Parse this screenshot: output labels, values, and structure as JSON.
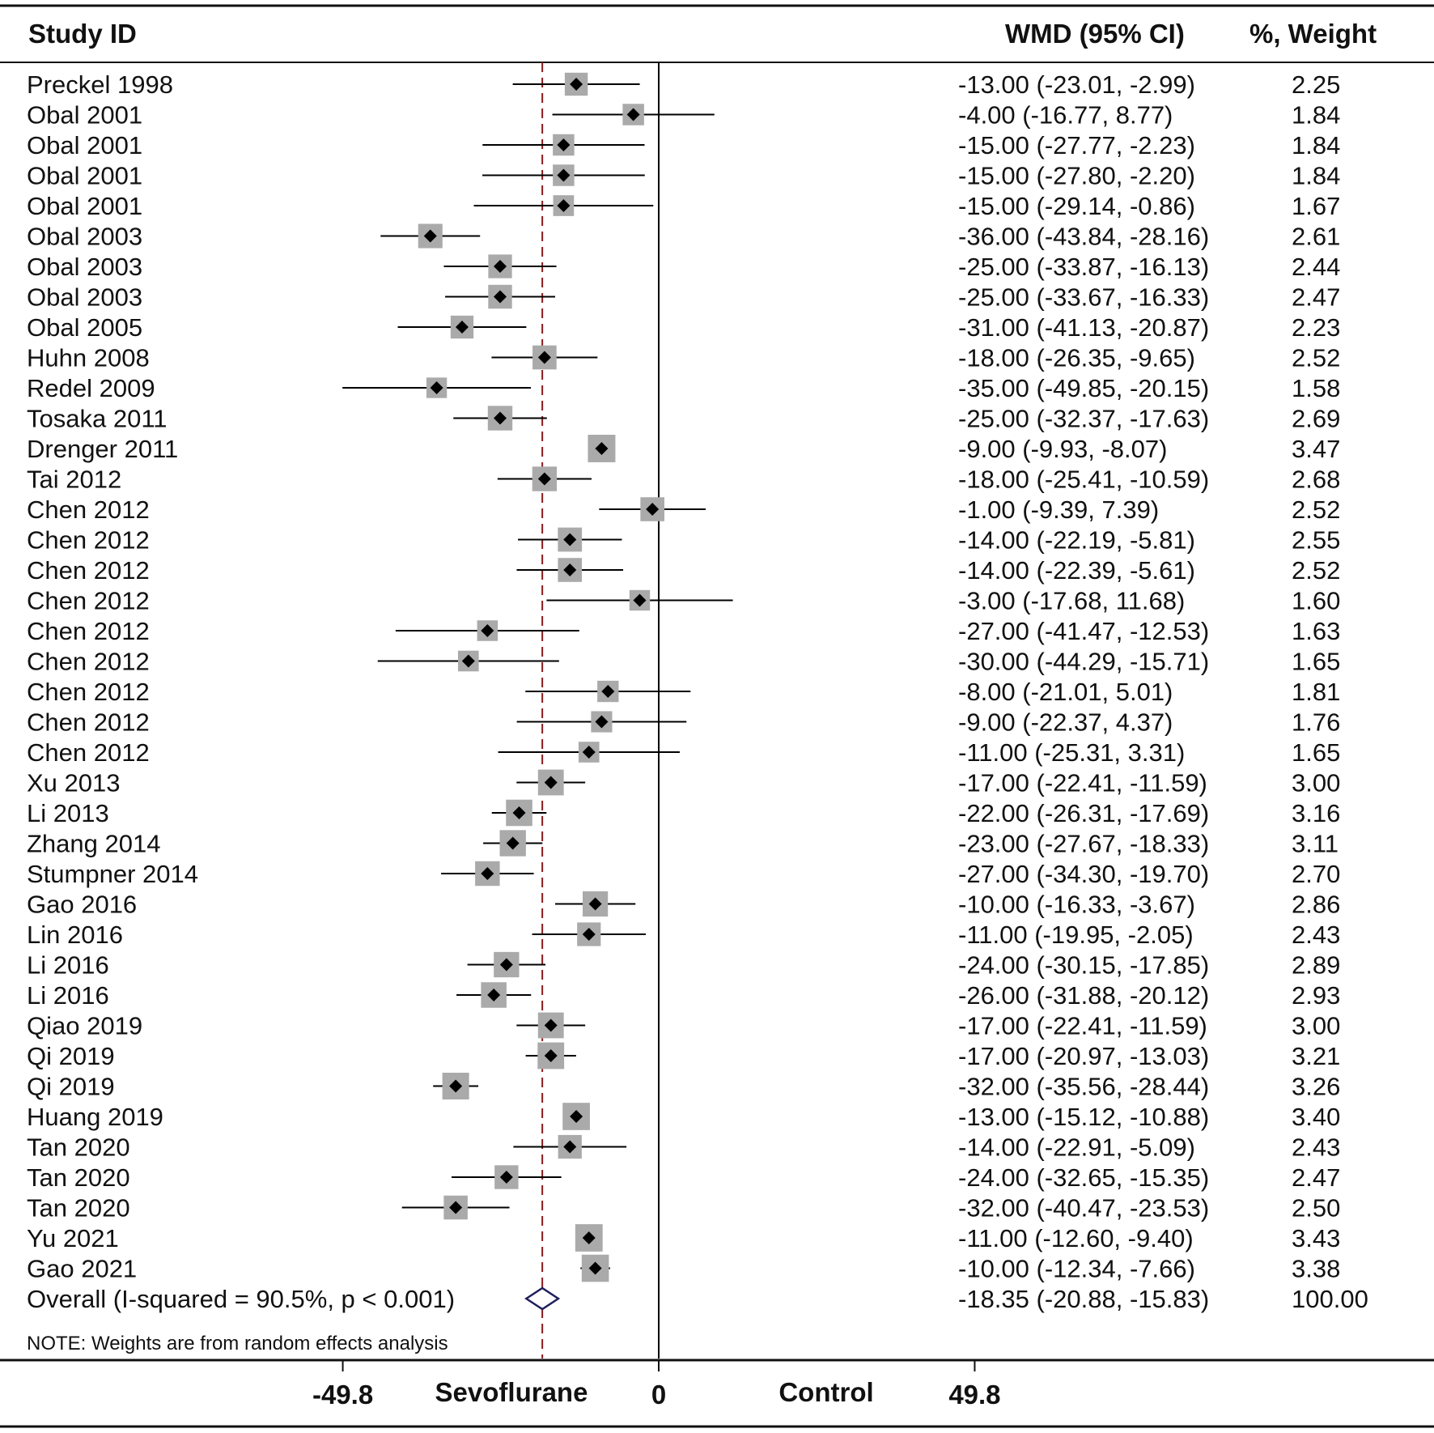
{
  "chart_data": {
    "type": "forest",
    "columns": {
      "study": "Study ID",
      "effect": "WMD (95% CI)",
      "weight": "%, Weight"
    },
    "studies": [
      {
        "label": "Preckel 1998",
        "est": -13.0,
        "lo": -23.01,
        "hi": -2.99,
        "weight": 2.25,
        "ci_text": "-13.00 (-23.01, -2.99)",
        "weight_text": "2.25"
      },
      {
        "label": "Obal 2001",
        "est": -4.0,
        "lo": -16.77,
        "hi": 8.77,
        "weight": 1.84,
        "ci_text": "-4.00 (-16.77, 8.77)",
        "weight_text": "1.84"
      },
      {
        "label": "Obal 2001",
        "est": -15.0,
        "lo": -27.77,
        "hi": -2.23,
        "weight": 1.84,
        "ci_text": "-15.00 (-27.77, -2.23)",
        "weight_text": "1.84"
      },
      {
        "label": "Obal 2001",
        "est": -15.0,
        "lo": -27.8,
        "hi": -2.2,
        "weight": 1.84,
        "ci_text": "-15.00 (-27.80, -2.20)",
        "weight_text": "1.84"
      },
      {
        "label": "Obal 2001",
        "est": -15.0,
        "lo": -29.14,
        "hi": -0.86,
        "weight": 1.67,
        "ci_text": "-15.00 (-29.14, -0.86)",
        "weight_text": "1.67"
      },
      {
        "label": "Obal 2003",
        "est": -36.0,
        "lo": -43.84,
        "hi": -28.16,
        "weight": 2.61,
        "ci_text": "-36.00 (-43.84, -28.16)",
        "weight_text": "2.61"
      },
      {
        "label": "Obal 2003",
        "est": -25.0,
        "lo": -33.87,
        "hi": -16.13,
        "weight": 2.44,
        "ci_text": "-25.00 (-33.87, -16.13)",
        "weight_text": "2.44"
      },
      {
        "label": "Obal 2003",
        "est": -25.0,
        "lo": -33.67,
        "hi": -16.33,
        "weight": 2.47,
        "ci_text": "-25.00 (-33.67, -16.33)",
        "weight_text": "2.47"
      },
      {
        "label": "Obal 2005",
        "est": -31.0,
        "lo": -41.13,
        "hi": -20.87,
        "weight": 2.23,
        "ci_text": "-31.00 (-41.13, -20.87)",
        "weight_text": "2.23"
      },
      {
        "label": "Huhn 2008",
        "est": -18.0,
        "lo": -26.35,
        "hi": -9.65,
        "weight": 2.52,
        "ci_text": "-18.00 (-26.35, -9.65)",
        "weight_text": "2.52"
      },
      {
        "label": "Redel 2009",
        "est": -35.0,
        "lo": -49.85,
        "hi": -20.15,
        "weight": 1.58,
        "ci_text": "-35.00 (-49.85, -20.15)",
        "weight_text": "1.58"
      },
      {
        "label": "Tosaka 2011",
        "est": -25.0,
        "lo": -32.37,
        "hi": -17.63,
        "weight": 2.69,
        "ci_text": "-25.00 (-32.37, -17.63)",
        "weight_text": "2.69"
      },
      {
        "label": "Drenger 2011",
        "est": -9.0,
        "lo": -9.93,
        "hi": -8.07,
        "weight": 3.47,
        "ci_text": "-9.00 (-9.93, -8.07)",
        "weight_text": "3.47"
      },
      {
        "label": "Tai 2012",
        "est": -18.0,
        "lo": -25.41,
        "hi": -10.59,
        "weight": 2.68,
        "ci_text": "-18.00 (-25.41, -10.59)",
        "weight_text": "2.68"
      },
      {
        "label": "Chen 2012",
        "est": -1.0,
        "lo": -9.39,
        "hi": 7.39,
        "weight": 2.52,
        "ci_text": "-1.00 (-9.39, 7.39)",
        "weight_text": "2.52"
      },
      {
        "label": "Chen 2012",
        "est": -14.0,
        "lo": -22.19,
        "hi": -5.81,
        "weight": 2.55,
        "ci_text": "-14.00 (-22.19, -5.81)",
        "weight_text": "2.55"
      },
      {
        "label": "Chen 2012",
        "est": -14.0,
        "lo": -22.39,
        "hi": -5.61,
        "weight": 2.52,
        "ci_text": "-14.00 (-22.39, -5.61)",
        "weight_text": "2.52"
      },
      {
        "label": "Chen 2012",
        "est": -3.0,
        "lo": -17.68,
        "hi": 11.68,
        "weight": 1.6,
        "ci_text": "-3.00 (-17.68, 11.68)",
        "weight_text": "1.60"
      },
      {
        "label": "Chen 2012",
        "est": -27.0,
        "lo": -41.47,
        "hi": -12.53,
        "weight": 1.63,
        "ci_text": "-27.00 (-41.47, -12.53)",
        "weight_text": "1.63"
      },
      {
        "label": "Chen 2012",
        "est": -30.0,
        "lo": -44.29,
        "hi": -15.71,
        "weight": 1.65,
        "ci_text": "-30.00 (-44.29, -15.71)",
        "weight_text": "1.65"
      },
      {
        "label": "Chen 2012",
        "est": -8.0,
        "lo": -21.01,
        "hi": 5.01,
        "weight": 1.81,
        "ci_text": "-8.00 (-21.01, 5.01)",
        "weight_text": "1.81"
      },
      {
        "label": "Chen 2012",
        "est": -9.0,
        "lo": -22.37,
        "hi": 4.37,
        "weight": 1.76,
        "ci_text": "-9.00 (-22.37, 4.37)",
        "weight_text": "1.76"
      },
      {
        "label": "Chen 2012",
        "est": -11.0,
        "lo": -25.31,
        "hi": 3.31,
        "weight": 1.65,
        "ci_text": "-11.00 (-25.31, 3.31)",
        "weight_text": "1.65"
      },
      {
        "label": "Xu 2013",
        "est": -17.0,
        "lo": -22.41,
        "hi": -11.59,
        "weight": 3.0,
        "ci_text": "-17.00 (-22.41, -11.59)",
        "weight_text": "3.00"
      },
      {
        "label": "Li 2013",
        "est": -22.0,
        "lo": -26.31,
        "hi": -17.69,
        "weight": 3.16,
        "ci_text": "-22.00 (-26.31, -17.69)",
        "weight_text": "3.16"
      },
      {
        "label": "Zhang 2014",
        "est": -23.0,
        "lo": -27.67,
        "hi": -18.33,
        "weight": 3.11,
        "ci_text": "-23.00 (-27.67, -18.33)",
        "weight_text": "3.11"
      },
      {
        "label": "Stumpner 2014",
        "est": -27.0,
        "lo": -34.3,
        "hi": -19.7,
        "weight": 2.7,
        "ci_text": "-27.00 (-34.30, -19.70)",
        "weight_text": "2.70"
      },
      {
        "label": "Gao 2016",
        "est": -10.0,
        "lo": -16.33,
        "hi": -3.67,
        "weight": 2.86,
        "ci_text": "-10.00 (-16.33, -3.67)",
        "weight_text": "2.86"
      },
      {
        "label": "Lin 2016",
        "est": -11.0,
        "lo": -19.95,
        "hi": -2.05,
        "weight": 2.43,
        "ci_text": "-11.00 (-19.95, -2.05)",
        "weight_text": "2.43"
      },
      {
        "label": "Li 2016",
        "est": -24.0,
        "lo": -30.15,
        "hi": -17.85,
        "weight": 2.89,
        "ci_text": "-24.00 (-30.15, -17.85)",
        "weight_text": "2.89"
      },
      {
        "label": "Li 2016",
        "est": -26.0,
        "lo": -31.88,
        "hi": -20.12,
        "weight": 2.93,
        "ci_text": "-26.00 (-31.88, -20.12)",
        "weight_text": "2.93"
      },
      {
        "label": "Qiao 2019",
        "est": -17.0,
        "lo": -22.41,
        "hi": -11.59,
        "weight": 3.0,
        "ci_text": "-17.00 (-22.41, -11.59)",
        "weight_text": "3.00"
      },
      {
        "label": "Qi 2019",
        "est": -17.0,
        "lo": -20.97,
        "hi": -13.03,
        "weight": 3.21,
        "ci_text": "-17.00 (-20.97, -13.03)",
        "weight_text": "3.21"
      },
      {
        "label": "Qi 2019",
        "est": -32.0,
        "lo": -35.56,
        "hi": -28.44,
        "weight": 3.26,
        "ci_text": "-32.00 (-35.56, -28.44)",
        "weight_text": "3.26"
      },
      {
        "label": "Huang 2019",
        "est": -13.0,
        "lo": -15.12,
        "hi": -10.88,
        "weight": 3.4,
        "ci_text": "-13.00 (-15.12, -10.88)",
        "weight_text": "3.40"
      },
      {
        "label": "Tan 2020",
        "est": -14.0,
        "lo": -22.91,
        "hi": -5.09,
        "weight": 2.43,
        "ci_text": "-14.00 (-22.91, -5.09)",
        "weight_text": "2.43"
      },
      {
        "label": "Tan 2020",
        "est": -24.0,
        "lo": -32.65,
        "hi": -15.35,
        "weight": 2.47,
        "ci_text": "-24.00 (-32.65, -15.35)",
        "weight_text": "2.47"
      },
      {
        "label": "Tan 2020",
        "est": -32.0,
        "lo": -40.47,
        "hi": -23.53,
        "weight": 2.5,
        "ci_text": "-32.00 (-40.47, -23.53)",
        "weight_text": "2.50"
      },
      {
        "label": "Yu 2021",
        "est": -11.0,
        "lo": -12.6,
        "hi": -9.4,
        "weight": 3.43,
        "ci_text": "-11.00 (-12.60, -9.40)",
        "weight_text": "3.43"
      },
      {
        "label": "Gao 2021",
        "est": -10.0,
        "lo": -12.34,
        "hi": -7.66,
        "weight": 3.38,
        "ci_text": "-10.00 (-12.34, -7.66)",
        "weight_text": "3.38"
      }
    ],
    "overall": {
      "label": "Overall  (I-squared = 90.5%, p < 0.001)",
      "est": -18.35,
      "lo": -20.88,
      "hi": -15.83,
      "weight": 100.0,
      "ci_text": "-18.35 (-20.88, -15.83)",
      "weight_text": "100.00"
    },
    "note": "NOTE: Weights are from random effects analysis",
    "x_axis": {
      "range": [
        -49.8,
        49.8
      ],
      "ticks": [
        -49.8,
        0,
        49.8
      ],
      "tick_labels": [
        "-49.8",
        "0",
        "49.8"
      ],
      "left_label": "Sevoflurane",
      "right_label": "Control"
    },
    "reference_line": 0,
    "colors": {
      "text": "#111111",
      "marker_box": "#aaaaaa",
      "marker_point": "#000000",
      "overall_line": "#8b1a1a",
      "overall_diamond": "#1f1f5c"
    }
  }
}
